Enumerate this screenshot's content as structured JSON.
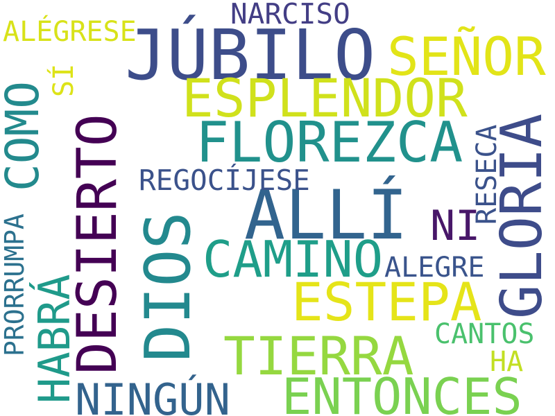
{
  "cloud": {
    "words": [
      {
        "text": "JÚBILO",
        "color": "#3d4d8a"
      },
      {
        "text": "ALLÍ",
        "color": "#32648e"
      },
      {
        "text": "DIOS",
        "color": "#23898e"
      },
      {
        "text": "DESIERTO",
        "color": "#440154"
      },
      {
        "text": "GLORIA",
        "color": "#3e4c8a"
      },
      {
        "text": "FLOREZCA",
        "color": "#21918c"
      },
      {
        "text": "ESPLENDOR",
        "color": "#d0e11c"
      },
      {
        "text": "SEÑOR",
        "color": "#e2e418"
      },
      {
        "text": "ESTEPA",
        "color": "#e5e419"
      },
      {
        "text": "CAMINO",
        "color": "#1f9e89"
      },
      {
        "text": "TIERRA",
        "color": "#95d840"
      },
      {
        "text": "ENTONCES",
        "color": "#7ad151"
      },
      {
        "text": "NINGÚN",
        "color": "#33638d"
      },
      {
        "text": "HABRÁ",
        "color": "#1f9a8a"
      },
      {
        "text": "COMO",
        "color": "#238a8d"
      },
      {
        "text": "NI",
        "color": "#481769"
      },
      {
        "text": "REGOCÍJESE",
        "color": "#3b528b"
      },
      {
        "text": "NARCISO",
        "color": "#433e85"
      },
      {
        "text": "ALÉGRESE",
        "color": "#d8e219"
      },
      {
        "text": "SÍ",
        "color": "#dde318"
      },
      {
        "text": "RESECA",
        "color": "#3b528b"
      },
      {
        "text": "ALEGRE",
        "color": "#3a548c"
      },
      {
        "text": "CANTOS",
        "color": "#4ac16d"
      },
      {
        "text": "HA",
        "color": "#c2df23"
      },
      {
        "text": "PRORRUMPA",
        "color": "#2c718e"
      }
    ]
  }
}
